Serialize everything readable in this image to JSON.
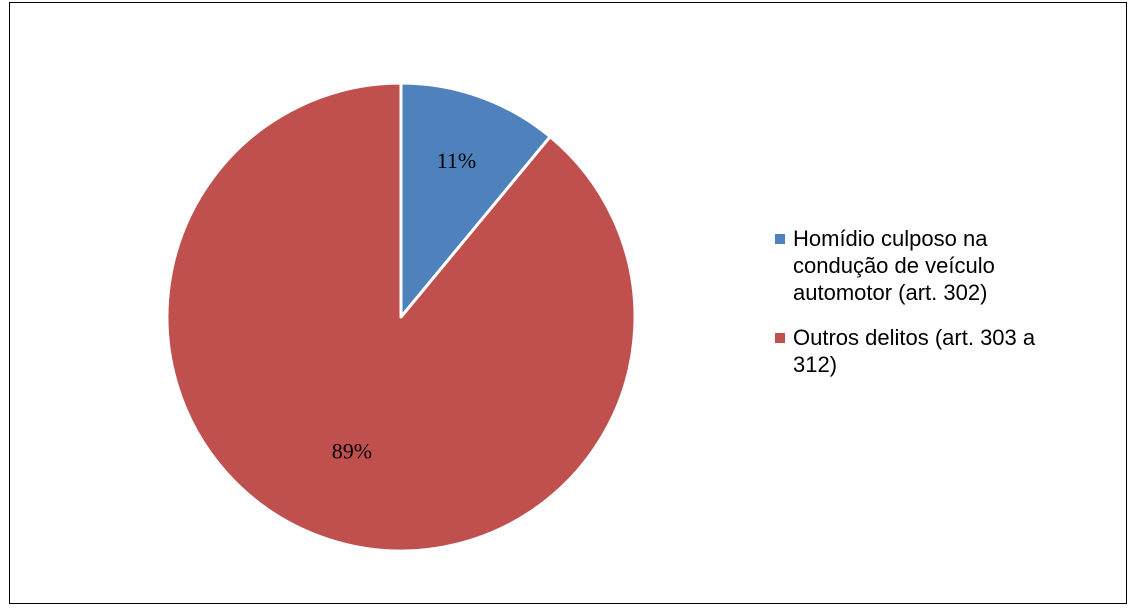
{
  "chart_data": {
    "type": "pie",
    "categories": [
      "Homídio culposo na condução de veículo automotor (art. 302)",
      "Outros delitos (art. 303 a 312)"
    ],
    "values": [
      11,
      89
    ],
    "value_labels": [
      "11%",
      "89%"
    ],
    "colors": [
      "#4F81BD",
      "#C0504D"
    ],
    "legend_position": "right"
  }
}
